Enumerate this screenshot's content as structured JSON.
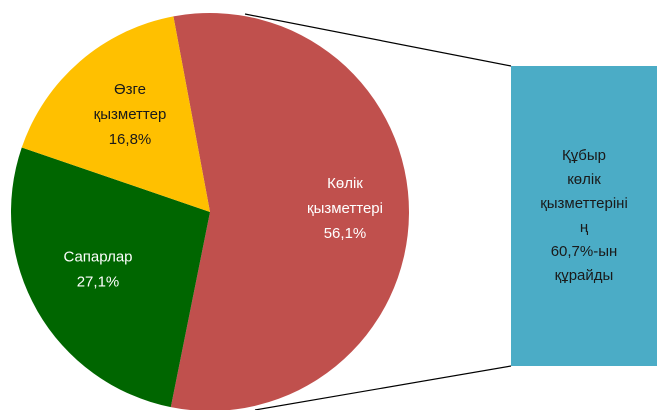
{
  "chart_data": {
    "type": "pie",
    "categories": [
      "Көлік қызметтері",
      "Сапарлар",
      "Өзге қызметтер"
    ],
    "values": [
      56.1,
      27.1,
      16.8
    ],
    "value_labels": [
      "56,1%",
      "27,1%",
      "16,8%"
    ],
    "colors": [
      "#c0504d",
      "#006600",
      "#ffc000"
    ],
    "annotation": [
      "Құбыр",
      "көлік",
      "қызметтеріні",
      "ң",
      "60,7%-ын",
      "құрайды"
    ],
    "annotation_color": "#4bacc6"
  }
}
